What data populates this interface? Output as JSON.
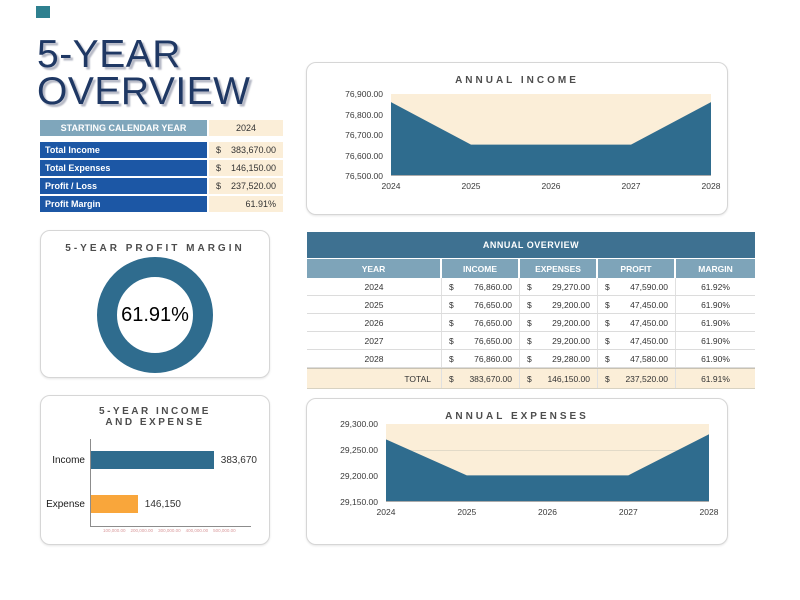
{
  "page": {
    "title_line1": "5-YEAR",
    "title_line2": "OVERVIEW"
  },
  "colors": {
    "navy_title": "#1F3864",
    "teal_series": "#2F6C8E",
    "orange_series": "#F9A63B",
    "cream_fill": "#FBEED8",
    "summary_row_blue": "#1C57A5",
    "steel_header": "#7EA4B9",
    "table_title_bar": "#3E7191",
    "accent_square": "#2E808F",
    "pink_axis_text": "#D9999B"
  },
  "summary": {
    "header_label": "STARTING CALENDAR YEAR",
    "header_value": "2024",
    "rows": [
      {
        "label": "Total Income",
        "currency": "$",
        "value": "383,670.00"
      },
      {
        "label": "Total Expenses",
        "currency": "$",
        "value": "146,150.00"
      },
      {
        "label": "Profit / Loss",
        "currency": "$",
        "value": "237,520.00"
      },
      {
        "label": "Profit Margin",
        "currency": "",
        "value": "61.91%"
      }
    ]
  },
  "overview_table": {
    "title": "ANNUAL OVERVIEW",
    "currency": "$",
    "columns": [
      "YEAR",
      "INCOME",
      "EXPENSES",
      "PROFIT",
      "MARGIN"
    ],
    "rows": [
      {
        "year": "2024",
        "income": "76,860.00",
        "expenses": "29,270.00",
        "profit": "47,590.00",
        "margin": "61.92%"
      },
      {
        "year": "2025",
        "income": "76,650.00",
        "expenses": "29,200.00",
        "profit": "47,450.00",
        "margin": "61.90%"
      },
      {
        "year": "2026",
        "income": "76,650.00",
        "expenses": "29,200.00",
        "profit": "47,450.00",
        "margin": "61.90%"
      },
      {
        "year": "2027",
        "income": "76,650.00",
        "expenses": "29,200.00",
        "profit": "47,450.00",
        "margin": "61.90%"
      },
      {
        "year": "2028",
        "income": "76,860.00",
        "expenses": "29,280.00",
        "profit": "47,580.00",
        "margin": "61.90%"
      }
    ],
    "total": {
      "label": "TOTAL",
      "income": "383,670.00",
      "expenses": "146,150.00",
      "profit": "237,520.00",
      "margin": "61.91%"
    }
  },
  "chart_data": [
    {
      "id": "annual-income",
      "type": "area",
      "title": "ANNUAL INCOME",
      "x": [
        2024,
        2025,
        2026,
        2027,
        2028
      ],
      "values": [
        76860,
        76650,
        76650,
        76650,
        76860
      ],
      "ylim": [
        76500,
        76900
      ],
      "yticks": [
        "76,900.00",
        "76,800.00",
        "76,700.00",
        "76,600.00",
        "76,500.00"
      ],
      "xticks": [
        "2024",
        "2025",
        "2026",
        "2027",
        "2028"
      ],
      "grid": false,
      "legend": "none",
      "plot_bg": "#FBEED8",
      "series_color": "#2F6C8E"
    },
    {
      "id": "five-year-profit-margin",
      "type": "donut",
      "title": "5-YEAR PROFIT MARGIN",
      "value": 61.91,
      "label": "61.91%",
      "series_color": "#2F6C8E"
    },
    {
      "id": "five-year-income-expense",
      "type": "bar",
      "orientation": "horizontal",
      "title_line1": "5-YEAR INCOME",
      "title_line2": "AND EXPENSE",
      "categories": [
        "Income",
        "Expense"
      ],
      "values": [
        383670,
        146150
      ],
      "data_labels": [
        "383,670",
        "146,150"
      ],
      "bar_colors": [
        "#2F6C8E",
        "#F9A63B"
      ],
      "xlim": [
        0,
        500000
      ],
      "axis_sublabels": [
        "100,000.00",
        "200,000.00",
        "300,000.00",
        "400,000.00",
        "500,000.00"
      ],
      "legend": "none"
    },
    {
      "id": "annual-expenses",
      "type": "area",
      "title": "ANNUAL EXPENSES",
      "x": [
        2024,
        2025,
        2026,
        2027,
        2028
      ],
      "values": [
        29270,
        29200,
        29200,
        29200,
        29280
      ],
      "ylim": [
        29150,
        29300
      ],
      "yticks": [
        "29,300.00",
        "29,250.00",
        "29,200.00",
        "29,150.00"
      ],
      "xticks": [
        "2024",
        "2025",
        "2026",
        "2027",
        "2028"
      ],
      "grid": true,
      "legend": "none",
      "plot_bg": "#FBEED8",
      "series_color": "#2F6C8E"
    }
  ]
}
